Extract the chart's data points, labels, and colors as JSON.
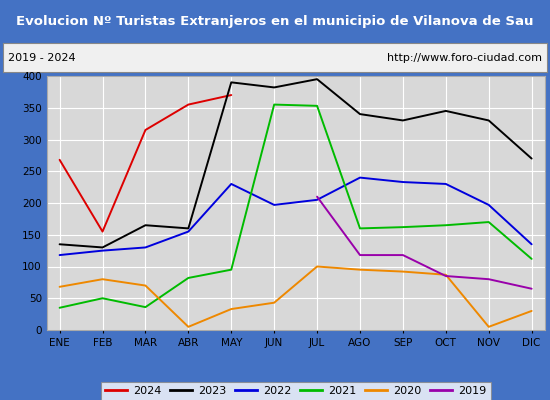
{
  "title": "Evolucion Nº Turistas Extranjeros en el municipio de Vilanova de Sau",
  "subtitle_left": "2019 - 2024",
  "subtitle_right": "http://www.foro-ciudad.com",
  "xlabel_ticks": [
    "ENE",
    "FEB",
    "MAR",
    "ABR",
    "MAY",
    "JUN",
    "JUL",
    "AGO",
    "SEP",
    "OCT",
    "NOV",
    "DIC"
  ],
  "ylim": [
    0,
    400
  ],
  "yticks": [
    0,
    50,
    100,
    150,
    200,
    250,
    300,
    350,
    400
  ],
  "series": {
    "2024": {
      "color": "#dd0000",
      "data": [
        268,
        155,
        315,
        355,
        370,
        null,
        null,
        null,
        null,
        null,
        null,
        null
      ]
    },
    "2023": {
      "color": "#000000",
      "data": [
        135,
        130,
        165,
        160,
        390,
        382,
        395,
        340,
        330,
        345,
        330,
        270
      ]
    },
    "2022": {
      "color": "#0000dd",
      "data": [
        118,
        125,
        130,
        155,
        230,
        197,
        205,
        240,
        233,
        230,
        197,
        135
      ]
    },
    "2021": {
      "color": "#00bb00",
      "data": [
        35,
        50,
        36,
        82,
        95,
        355,
        353,
        160,
        162,
        165,
        170,
        112
      ]
    },
    "2020": {
      "color": "#ee8800",
      "data": [
        68,
        80,
        70,
        5,
        33,
        43,
        100,
        95,
        92,
        87,
        5,
        30
      ]
    },
    "2019": {
      "color": "#9900aa",
      "data": [
        null,
        null,
        null,
        null,
        null,
        null,
        210,
        118,
        118,
        85,
        80,
        65
      ]
    }
  },
  "legend_order": [
    "2024",
    "2023",
    "2022",
    "2021",
    "2020",
    "2019"
  ],
  "title_bg_color": "#4472c4",
  "title_text_color": "white",
  "subtitle_bg_color": "#f0f0f0",
  "plot_bg_color": "#d8d8d8",
  "grid_color": "white",
  "border_color": "#4472c4"
}
